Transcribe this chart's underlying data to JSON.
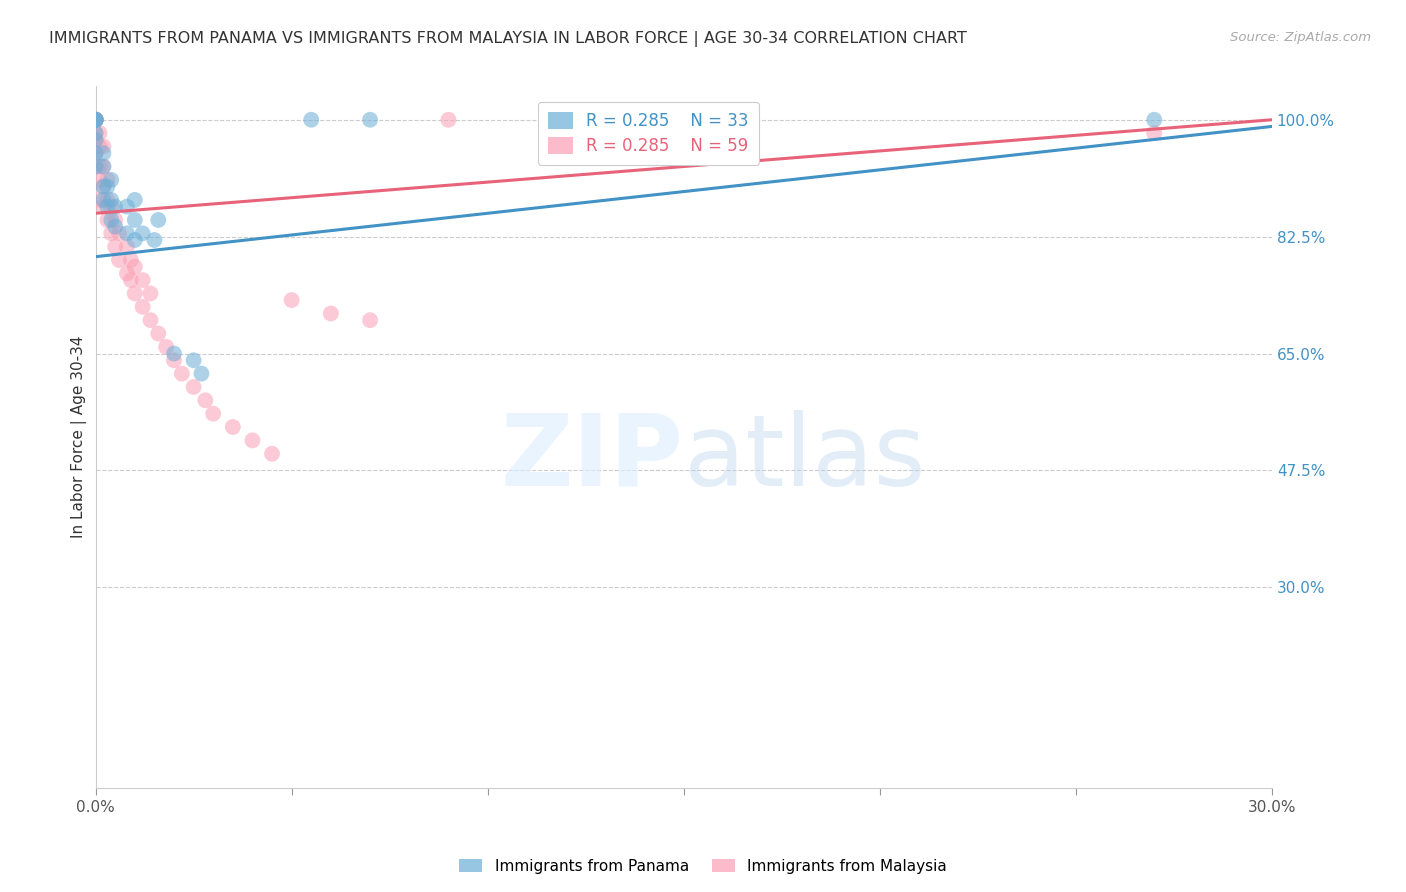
{
  "title": "IMMIGRANTS FROM PANAMA VS IMMIGRANTS FROM MALAYSIA IN LABOR FORCE | AGE 30-34 CORRELATION CHART",
  "source": "Source: ZipAtlas.com",
  "ylabel": "In Labor Force | Age 30-34",
  "x_min": 0.0,
  "x_max": 0.3,
  "y_min": 0.0,
  "y_max": 1.05,
  "x_tick_positions": [
    0.0,
    0.05,
    0.1,
    0.15,
    0.2,
    0.25,
    0.3
  ],
  "x_tick_labels": [
    "0.0%",
    "",
    "",
    "",
    "",
    "",
    "30.0%"
  ],
  "y_ticks_right": [
    1.0,
    0.825,
    0.65,
    0.475,
    0.3
  ],
  "y_tick_labels_right": [
    "100.0%",
    "82.5%",
    "65.0%",
    "47.5%",
    "30.0%"
  ],
  "grid_color": "#cccccc",
  "panama_color": "#6baed6",
  "malaysia_color": "#fa9fb5",
  "panama_R": 0.285,
  "panama_N": 33,
  "malaysia_R": 0.285,
  "malaysia_N": 59,
  "panama_line_color": "#4292c6",
  "malaysia_line_color": "#e8637a",
  "panama_points_x": [
    0.0,
    0.0,
    0.0,
    0.0,
    0.0,
    0.0,
    0.0,
    0.0,
    0.002,
    0.002,
    0.002,
    0.002,
    0.003,
    0.003,
    0.004,
    0.004,
    0.004,
    0.005,
    0.005,
    0.008,
    0.008,
    0.01,
    0.01,
    0.01,
    0.012,
    0.015,
    0.016,
    0.02,
    0.025,
    0.027,
    0.055,
    0.07,
    0.27
  ],
  "panama_points_y": [
    0.93,
    0.95,
    0.97,
    0.98,
    1.0,
    1.0,
    1.0,
    1.0,
    0.88,
    0.9,
    0.93,
    0.95,
    0.87,
    0.9,
    0.85,
    0.88,
    0.91,
    0.84,
    0.87,
    0.83,
    0.87,
    0.82,
    0.85,
    0.88,
    0.83,
    0.82,
    0.85,
    0.65,
    0.64,
    0.62,
    1.0,
    1.0,
    1.0
  ],
  "malaysia_points_x": [
    0.0,
    0.0,
    0.0,
    0.0,
    0.0,
    0.0,
    0.0,
    0.0,
    0.0,
    0.0,
    0.0,
    0.0,
    0.0,
    0.0,
    0.0,
    0.0,
    0.001,
    0.001,
    0.001,
    0.001,
    0.001,
    0.002,
    0.002,
    0.002,
    0.002,
    0.003,
    0.003,
    0.003,
    0.004,
    0.004,
    0.005,
    0.005,
    0.006,
    0.006,
    0.008,
    0.008,
    0.009,
    0.009,
    0.01,
    0.01,
    0.012,
    0.012,
    0.014,
    0.014,
    0.016,
    0.018,
    0.02,
    0.022,
    0.025,
    0.028,
    0.03,
    0.035,
    0.04,
    0.045,
    0.05,
    0.06,
    0.07,
    0.09,
    0.27
  ],
  "malaysia_points_y": [
    0.93,
    0.95,
    0.97,
    0.98,
    1.0,
    1.0,
    1.0,
    1.0,
    1.0,
    1.0,
    1.0,
    1.0,
    1.0,
    1.0,
    1.0,
    1.0,
    0.88,
    0.91,
    0.93,
    0.96,
    0.98,
    0.87,
    0.9,
    0.93,
    0.96,
    0.85,
    0.88,
    0.91,
    0.83,
    0.87,
    0.81,
    0.85,
    0.79,
    0.83,
    0.77,
    0.81,
    0.76,
    0.79,
    0.74,
    0.78,
    0.72,
    0.76,
    0.7,
    0.74,
    0.68,
    0.66,
    0.64,
    0.62,
    0.6,
    0.58,
    0.56,
    0.54,
    0.52,
    0.5,
    0.73,
    0.71,
    0.7,
    1.0,
    0.98
  ],
  "panama_trend_x": [
    0.0,
    0.3
  ],
  "panama_trend_y": [
    0.795,
    0.99
  ],
  "malaysia_trend_x": [
    0.0,
    0.3
  ],
  "malaysia_trend_y": [
    0.86,
    1.0
  ]
}
